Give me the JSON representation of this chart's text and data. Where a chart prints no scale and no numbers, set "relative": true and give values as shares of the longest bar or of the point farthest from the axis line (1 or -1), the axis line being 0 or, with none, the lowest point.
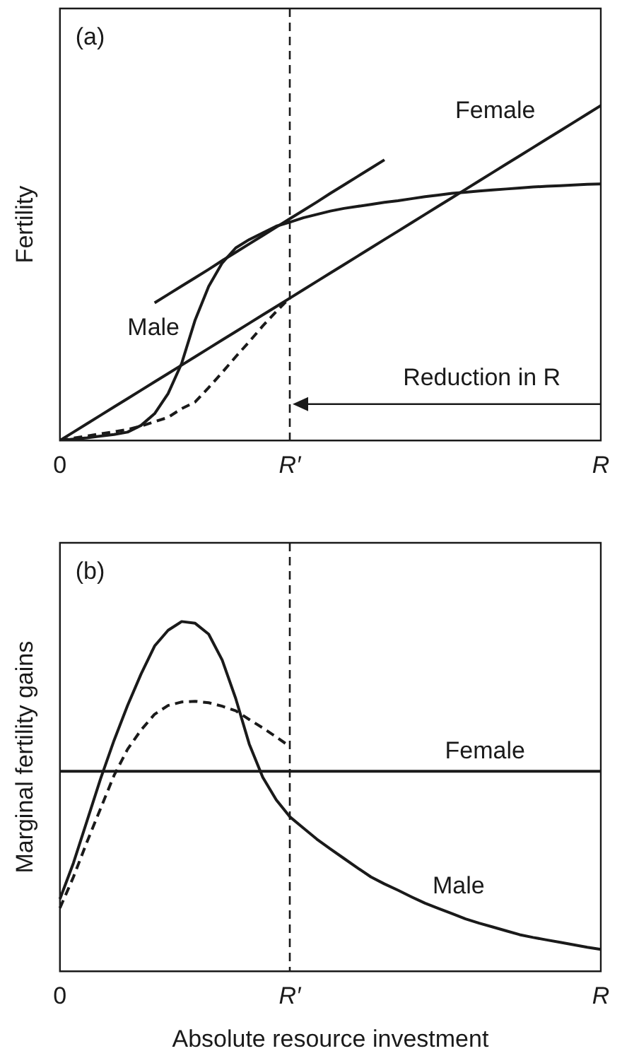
{
  "chart_data": [
    {
      "type": "line",
      "title": "(a)",
      "ylabel": "Fertility",
      "relative": true,
      "categories": [
        "0",
        null,
        null,
        null,
        null,
        null,
        null,
        null,
        null,
        null,
        null,
        null,
        null,
        null,
        null,
        null,
        null,
        "R′",
        null,
        null,
        null,
        null,
        null,
        null,
        null,
        null,
        null,
        null,
        null,
        null,
        null,
        null,
        null,
        null,
        null,
        null,
        null,
        null,
        null,
        null,
        "R"
      ],
      "series": [
        {
          "name": "Female",
          "color": "#1a1a1a",
          "values": [
            0,
            0.025,
            0.05,
            0.075,
            0.1,
            0.125,
            0.15,
            0.175,
            0.2,
            0.225,
            0.25,
            0.275,
            0.3,
            0.325,
            0.35,
            0.375,
            0.4,
            0.425,
            0.45,
            0.475,
            0.5,
            0.525,
            0.55,
            0.575,
            0.6,
            0.625,
            0.65,
            0.675,
            0.7,
            0.725,
            0.75,
            0.775,
            0.8,
            0.825,
            0.85,
            0.875,
            0.9,
            0.925,
            0.95,
            0.975,
            1
          ]
        },
        {
          "name": "Male",
          "color": "#1a1a1a",
          "values": [
            0,
            0.004,
            0.008,
            0.013,
            0.018,
            0.025,
            0.045,
            0.08,
            0.14,
            0.23,
            0.36,
            0.46,
            0.53,
            0.575,
            0.6,
            0.62,
            0.64,
            0.652,
            0.665,
            0.675,
            0.685,
            0.693,
            0.699,
            0.705,
            0.711,
            0.716,
            0.722,
            0.728,
            0.733,
            0.738,
            0.741,
            0.745,
            0.748,
            0.751,
            0.754,
            0.757,
            0.759,
            0.761,
            0.763,
            0.765,
            0.766
          ]
        },
        {
          "color": "#1a1a1a",
          "line_style": "dashed",
          "values": [
            0,
            0.007,
            0.013,
            0.02,
            0.026,
            0.033,
            0.043,
            0.056,
            0.069,
            0.095,
            0.115,
            0.158,
            0.203,
            0.25,
            0.295,
            0.342,
            0.385,
            0.426,
            null,
            null,
            null,
            null,
            null,
            null,
            null,
            null,
            null,
            null,
            null,
            null,
            null,
            null,
            null,
            null,
            null,
            null,
            null,
            null,
            null,
            null,
            null
          ]
        },
        {
          "color": "#1a1a1a",
          "values": [
            null,
            null,
            null,
            null,
            null,
            null,
            null,
            0.411,
            0.436,
            0.461,
            0.486,
            0.511,
            0.537,
            0.562,
            0.587,
            0.612,
            0.637,
            0.662,
            0.687,
            0.712,
            0.738,
            0.763,
            0.788,
            0.813,
            0.838,
            null,
            null,
            null,
            null,
            null,
            null,
            null,
            null,
            null,
            null,
            null,
            null,
            null,
            null,
            null,
            null
          ]
        }
      ],
      "ref_lines": [
        {
          "axis": "x",
          "value": "R′",
          "color": "#1a1a1a",
          "line_style": "dashed"
        }
      ],
      "annotations": [
        "Reduction in R"
      ],
      "grid": false,
      "legend": false,
      "marker": "none"
    },
    {
      "type": "line",
      "title": "(b)",
      "xlabel": "Absolute resource investment",
      "ylabel": "Marginal fertility gains",
      "relative": true,
      "categories": [
        "0",
        null,
        null,
        null,
        null,
        null,
        null,
        null,
        null,
        null,
        null,
        null,
        null,
        null,
        null,
        null,
        null,
        "R′",
        null,
        null,
        null,
        null,
        null,
        null,
        null,
        null,
        null,
        null,
        null,
        null,
        null,
        null,
        null,
        null,
        null,
        null,
        null,
        null,
        null,
        null,
        "R"
      ],
      "series": [
        {
          "name": "Female",
          "color": "#1a1a1a",
          "values": [
            0.572,
            0.572,
            0.572,
            0.572,
            0.572,
            0.572,
            0.572,
            0.572,
            0.572,
            0.572,
            0.572,
            0.572,
            0.572,
            0.572,
            0.572,
            0.572,
            0.572,
            0.572,
            0.572,
            0.572,
            0.572,
            0.572,
            0.572,
            0.572,
            0.572,
            0.572,
            0.572,
            0.572,
            0.572,
            0.572,
            0.572,
            0.572,
            0.572,
            0.572,
            0.572,
            0.572,
            0.572,
            0.572,
            0.572,
            0.572,
            0.572
          ]
        },
        {
          "name": "Male",
          "color": "#1a1a1a",
          "values": [
            0.207,
            0.31,
            0.43,
            0.55,
            0.66,
            0.76,
            0.85,
            0.93,
            0.975,
            1,
            0.995,
            0.964,
            0.89,
            0.78,
            0.65,
            0.555,
            0.49,
            0.442,
            0.41,
            0.378,
            0.35,
            0.323,
            0.296,
            0.27,
            0.25,
            0.232,
            0.213,
            0.195,
            0.18,
            0.165,
            0.15,
            0.138,
            0.127,
            0.116,
            0.105,
            0.097,
            0.09,
            0.083,
            0.076,
            0.069,
            0.063
          ]
        },
        {
          "color": "#1a1a1a",
          "line_style": "dashed",
          "values": [
            0.181,
            0.27,
            0.37,
            0.465,
            0.56,
            0.635,
            0.69,
            0.735,
            0.76,
            0.77,
            0.772,
            0.768,
            0.758,
            0.745,
            0.72,
            0.696,
            0.67,
            0.643,
            null,
            null,
            null,
            null,
            null,
            null,
            null,
            null,
            null,
            null,
            null,
            null,
            null,
            null,
            null,
            null,
            null,
            null,
            null,
            null,
            null,
            null,
            null
          ]
        }
      ],
      "ref_lines": [
        {
          "axis": "x",
          "value": "R′",
          "color": "#1a1a1a",
          "line_style": "dashed"
        }
      ],
      "grid": false,
      "legend": false,
      "marker": "none"
    }
  ]
}
